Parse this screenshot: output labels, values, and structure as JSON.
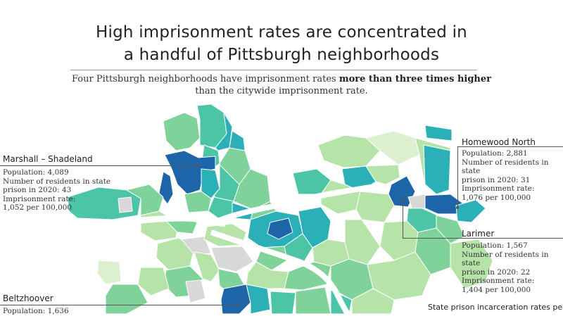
{
  "header": {
    "title_line1": "High imprisonment rates are concentrated in",
    "title_line2": "a handful of Pittsburgh neighborhoods",
    "subtitle_pre": "Four Pittsburgh neighborhoods have imprisonment rates ",
    "subtitle_bold": "more than three times higher",
    "subtitle_post": "than the citywide imprisonment rate."
  },
  "callouts": {
    "homewood_north": {
      "name": "Homewood North",
      "population": "Population: 2,881",
      "residents_1": "Number of residents in state",
      "residents_2": "prison in 2020: 31",
      "rate_label": "Imprisonment rate:",
      "rate_value": "1,076 per 100,000"
    },
    "marshall_shadeland": {
      "name": "Marshall – Shadeland",
      "population": "Population: 4,089",
      "residents_1": "Number of residents in state",
      "residents_2": "prison in 2020: 43",
      "rate_label": "Imprisonment rate:",
      "rate_value": "1,052 per 100,000"
    },
    "larimer": {
      "name": "Larimer",
      "population": "Population: 1,567",
      "residents_1": "Number of residents in state",
      "residents_2": "prison in 2020: 22",
      "rate_label": "Imprisonment rate:",
      "rate_value": "1,404 per 100,000"
    },
    "beltzhoover": {
      "name": "Beltzhoover",
      "population": "Population: 1,636"
    }
  },
  "legend": {
    "title": "State prison incarceration rates per"
  },
  "colors": {
    "highest": "#1e64a8",
    "high": "#2bb0b8",
    "mid": "#4cc4a6",
    "midlow": "#7fd39a",
    "low": "#b5e3a8",
    "lowest": "#dcf0cf",
    "no_data": "#d8d8d8",
    "river": "#ffffff"
  }
}
